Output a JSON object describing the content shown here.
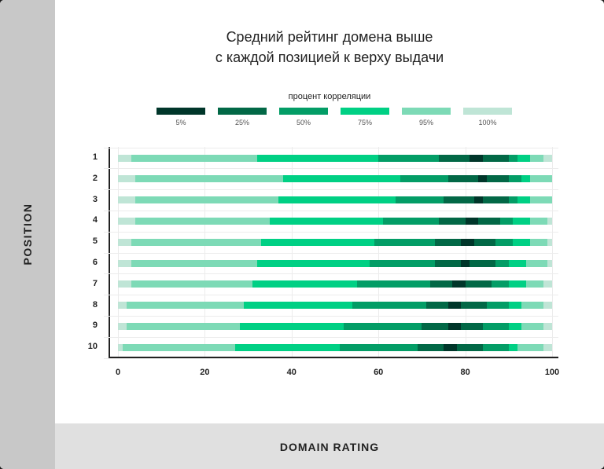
{
  "title_line1": "Средний рейтинг домена выше",
  "title_line2": "с каждой позицией к верху выдачи",
  "y_axis_title": "POSITION",
  "x_axis_title": "DOMAIN RATING",
  "legend": {
    "title": "процент корреляции",
    "items": [
      {
        "label": "5%",
        "color": "#00362a"
      },
      {
        "label": "25%",
        "color": "#026846"
      },
      {
        "label": "50%",
        "color": "#039d66"
      },
      {
        "label": "75%",
        "color": "#00d084"
      },
      {
        "label": "95%",
        "color": "#7ddab6"
      },
      {
        "label": "100%",
        "color": "#bfe5d6"
      }
    ]
  },
  "x_ticks": [
    "0",
    "20",
    "40",
    "60",
    "80",
    "100"
  ],
  "chart_data": {
    "type": "bar",
    "subtype": "horizontal-stacked-percentile-ranges",
    "title": "Средний рейтинг домена выше с каждой позицией к верху выдачи",
    "xlabel": "DOMAIN RATING",
    "ylabel": "POSITION",
    "xlim": [
      0,
      100
    ],
    "x_ticks": [
      0,
      20,
      40,
      60,
      80,
      100
    ],
    "grid": true,
    "legend_title": "процент корреляции",
    "legend": [
      "5%",
      "25%",
      "50%",
      "75%",
      "95%",
      "100%"
    ],
    "legend_position": "top",
    "categories": [
      "1",
      "2",
      "3",
      "4",
      "5",
      "6",
      "7",
      "8",
      "9",
      "10"
    ],
    "rows": [
      {
        "position": "1",
        "segments": [
          [
            0,
            3,
            "100%"
          ],
          [
            3,
            32,
            "95%"
          ],
          [
            32,
            60,
            "75%"
          ],
          [
            60,
            74,
            "50%"
          ],
          [
            74,
            81,
            "25%"
          ],
          [
            81,
            84,
            "5%"
          ],
          [
            84,
            90,
            "25%"
          ],
          [
            90,
            92,
            "50%"
          ],
          [
            92,
            95,
            "75%"
          ],
          [
            95,
            98,
            "95%"
          ],
          [
            98,
            100,
            "100%"
          ]
        ]
      },
      {
        "position": "2",
        "segments": [
          [
            0,
            4,
            "100%"
          ],
          [
            4,
            38,
            "95%"
          ],
          [
            38,
            65,
            "75%"
          ],
          [
            65,
            76,
            "50%"
          ],
          [
            76,
            83,
            "25%"
          ],
          [
            83,
            85,
            "5%"
          ],
          [
            85,
            90,
            "25%"
          ],
          [
            90,
            93,
            "50%"
          ],
          [
            93,
            95,
            "75%"
          ],
          [
            95,
            100,
            "95%"
          ]
        ]
      },
      {
        "position": "3",
        "segments": [
          [
            0,
            4,
            "100%"
          ],
          [
            4,
            37,
            "95%"
          ],
          [
            37,
            64,
            "75%"
          ],
          [
            64,
            75,
            "50%"
          ],
          [
            75,
            82,
            "25%"
          ],
          [
            82,
            84,
            "5%"
          ],
          [
            84,
            90,
            "25%"
          ],
          [
            90,
            92,
            "50%"
          ],
          [
            92,
            95,
            "75%"
          ],
          [
            95,
            100,
            "95%"
          ]
        ]
      },
      {
        "position": "4",
        "segments": [
          [
            0,
            4,
            "100%"
          ],
          [
            4,
            35,
            "95%"
          ],
          [
            35,
            61,
            "75%"
          ],
          [
            61,
            74,
            "50%"
          ],
          [
            74,
            80,
            "25%"
          ],
          [
            80,
            83,
            "5%"
          ],
          [
            83,
            88,
            "25%"
          ],
          [
            88,
            91,
            "50%"
          ],
          [
            91,
            95,
            "75%"
          ],
          [
            95,
            99,
            "95%"
          ],
          [
            99,
            100,
            "100%"
          ]
        ]
      },
      {
        "position": "5",
        "segments": [
          [
            0,
            3,
            "100%"
          ],
          [
            3,
            33,
            "95%"
          ],
          [
            33,
            59,
            "75%"
          ],
          [
            59,
            73,
            "50%"
          ],
          [
            73,
            79,
            "25%"
          ],
          [
            79,
            82,
            "5%"
          ],
          [
            82,
            87,
            "25%"
          ],
          [
            87,
            91,
            "50%"
          ],
          [
            91,
            95,
            "75%"
          ],
          [
            95,
            99,
            "95%"
          ],
          [
            99,
            100,
            "100%"
          ]
        ]
      },
      {
        "position": "6",
        "segments": [
          [
            0,
            3,
            "100%"
          ],
          [
            3,
            32,
            "95%"
          ],
          [
            32,
            58,
            "75%"
          ],
          [
            58,
            73,
            "50%"
          ],
          [
            73,
            79,
            "25%"
          ],
          [
            79,
            81,
            "5%"
          ],
          [
            81,
            87,
            "25%"
          ],
          [
            87,
            90,
            "50%"
          ],
          [
            90,
            94,
            "75%"
          ],
          [
            94,
            99,
            "95%"
          ],
          [
            99,
            100,
            "100%"
          ]
        ]
      },
      {
        "position": "7",
        "segments": [
          [
            0,
            3,
            "100%"
          ],
          [
            3,
            31,
            "95%"
          ],
          [
            31,
            55,
            "75%"
          ],
          [
            55,
            72,
            "50%"
          ],
          [
            72,
            77,
            "25%"
          ],
          [
            77,
            80,
            "5%"
          ],
          [
            80,
            86,
            "25%"
          ],
          [
            86,
            90,
            "50%"
          ],
          [
            90,
            94,
            "75%"
          ],
          [
            94,
            98,
            "95%"
          ],
          [
            98,
            100,
            "100%"
          ]
        ]
      },
      {
        "position": "8",
        "segments": [
          [
            0,
            2,
            "100%"
          ],
          [
            2,
            29,
            "95%"
          ],
          [
            29,
            54,
            "75%"
          ],
          [
            54,
            71,
            "50%"
          ],
          [
            71,
            76,
            "25%"
          ],
          [
            76,
            79,
            "5%"
          ],
          [
            79,
            85,
            "25%"
          ],
          [
            85,
            90,
            "50%"
          ],
          [
            90,
            93,
            "75%"
          ],
          [
            93,
            98,
            "95%"
          ],
          [
            98,
            100,
            "100%"
          ]
        ]
      },
      {
        "position": "9",
        "segments": [
          [
            0,
            2,
            "100%"
          ],
          [
            2,
            28,
            "95%"
          ],
          [
            28,
            52,
            "75%"
          ],
          [
            52,
            70,
            "50%"
          ],
          [
            70,
            76,
            "25%"
          ],
          [
            76,
            79,
            "5%"
          ],
          [
            79,
            84,
            "25%"
          ],
          [
            84,
            90,
            "50%"
          ],
          [
            90,
            93,
            "75%"
          ],
          [
            93,
            98,
            "95%"
          ],
          [
            98,
            100,
            "100%"
          ]
        ]
      },
      {
        "position": "10",
        "segments": [
          [
            0,
            1,
            "100%"
          ],
          [
            1,
            27,
            "95%"
          ],
          [
            27,
            51,
            "75%"
          ],
          [
            51,
            69,
            "50%"
          ],
          [
            69,
            75,
            "25%"
          ],
          [
            75,
            78,
            "5%"
          ],
          [
            78,
            84,
            "25%"
          ],
          [
            84,
            90,
            "50%"
          ],
          [
            90,
            92,
            "75%"
          ],
          [
            92,
            98,
            "95%"
          ],
          [
            98,
            100,
            "100%"
          ]
        ]
      }
    ]
  }
}
